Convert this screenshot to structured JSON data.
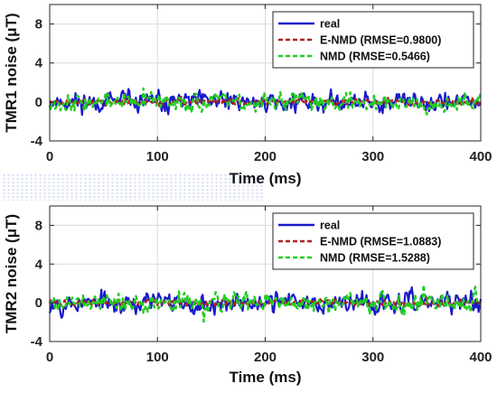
{
  "chart_data": [
    {
      "type": "line",
      "ylabel": "TMR1 noise (μT)",
      "xlabel": "Time (ms)",
      "xlim": [
        0,
        400
      ],
      "ylim": [
        -4,
        10
      ],
      "xticks": [
        0,
        100,
        200,
        300,
        400
      ],
      "yticks": [
        -4,
        0,
        4,
        8
      ],
      "grid": true,
      "legend_position": "top-right",
      "series": [
        {
          "name": "real",
          "color": "#1a1acc",
          "style": "solid",
          "amplitude": 1.1,
          "seed": 11
        },
        {
          "name": "E-NMD (RMSE=0.9800)",
          "color": "#b02020",
          "style": "dashed",
          "amplitude": 0.35,
          "seed": 23
        },
        {
          "name": "NMD (RMSE=0.5466)",
          "color": "#22cc22",
          "style": "dashed",
          "amplitude": 1.0,
          "seed": 37
        }
      ]
    },
    {
      "type": "line",
      "ylabel": "TMR2 noise (μT)",
      "xlabel": "Time (ms)",
      "xlim": [
        0,
        400
      ],
      "ylim": [
        -4,
        10
      ],
      "xticks": [
        0,
        100,
        200,
        300,
        400
      ],
      "yticks": [
        -4,
        0,
        4,
        8
      ],
      "grid": true,
      "legend_position": "top-right",
      "series": [
        {
          "name": "real",
          "color": "#1a1acc",
          "style": "solid",
          "amplitude": 1.2,
          "seed": 53
        },
        {
          "name": "E-NMD (RMSE=1.0883)",
          "color": "#b02020",
          "style": "dashed",
          "amplitude": 0.35,
          "seed": 71
        },
        {
          "name": "NMD (RMSE=1.5288)",
          "color": "#22cc22",
          "style": "dashed",
          "amplitude": 1.1,
          "seed": 89
        }
      ]
    }
  ]
}
